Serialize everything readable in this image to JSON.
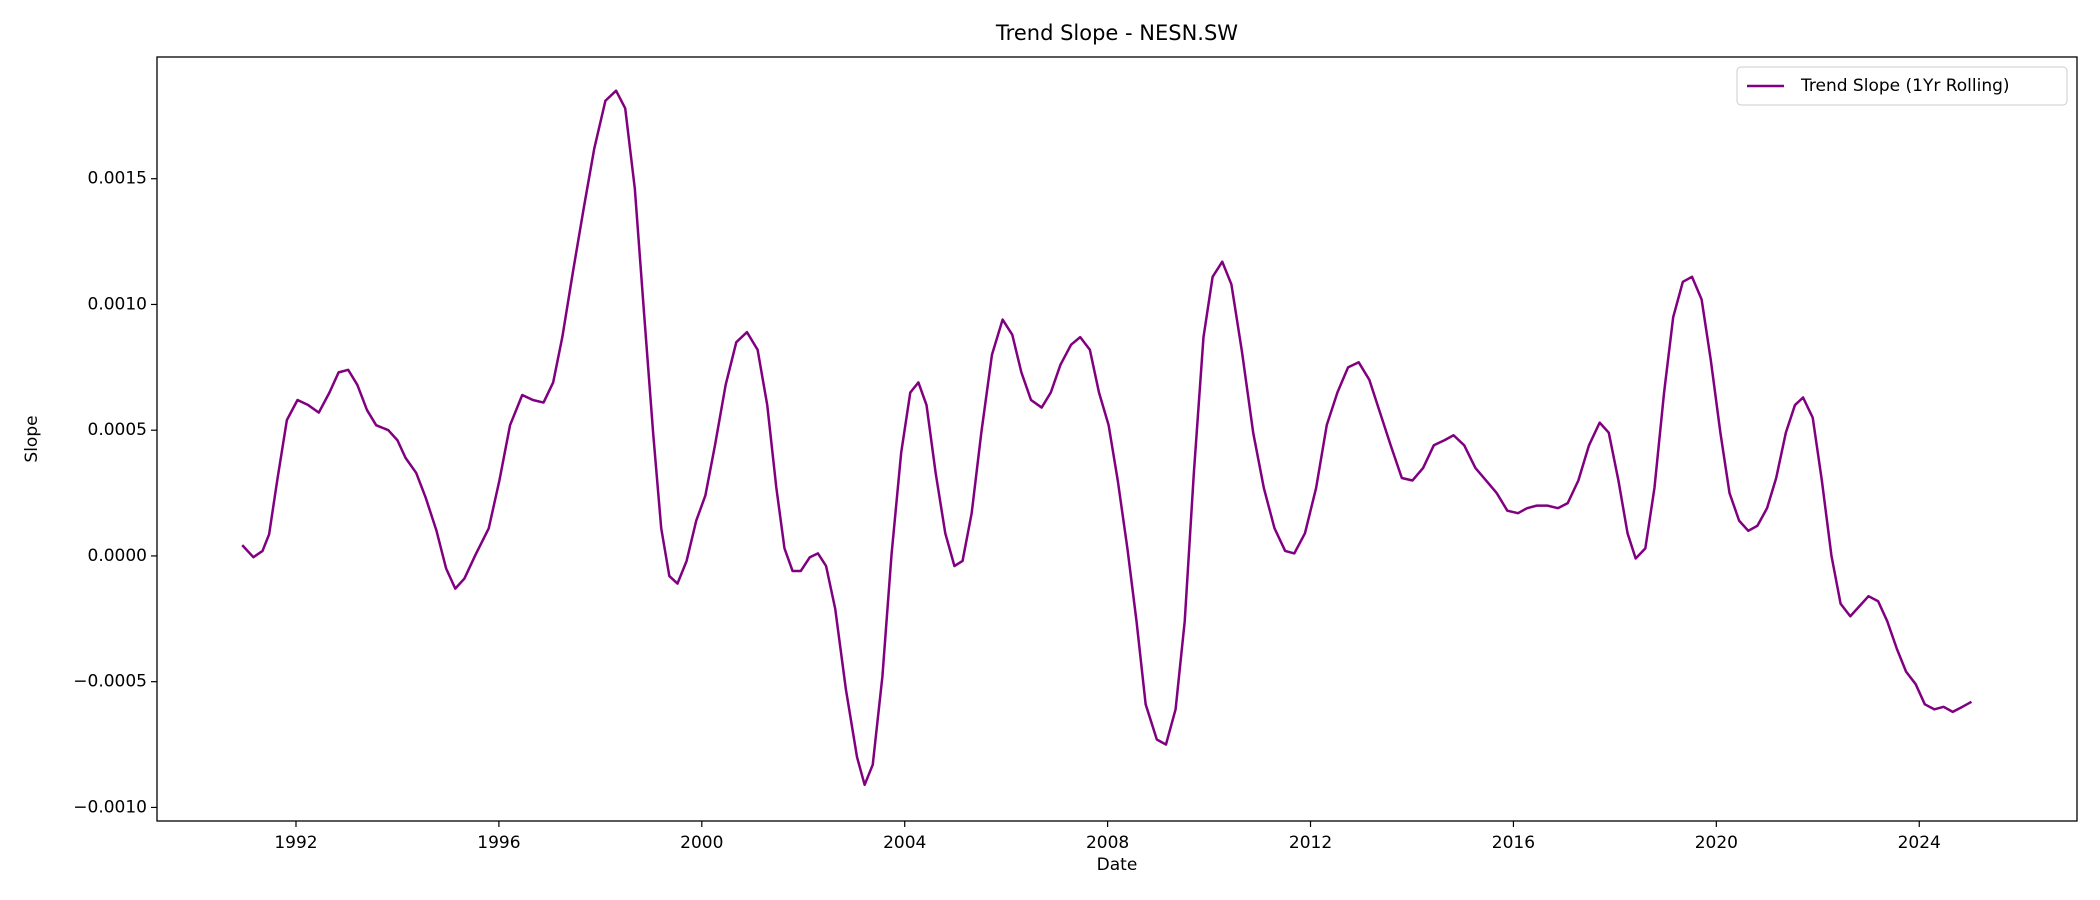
{
  "chart_data": {
    "type": "line",
    "title": "Trend Slope - NESN.SW",
    "xlabel": "Date",
    "ylabel": "Slope",
    "x": [
      1990.94,
      1991.16,
      1991.34,
      1991.47,
      1991.63,
      1991.82,
      1992.03,
      1992.24,
      1992.45,
      1992.66,
      1992.84,
      1993.03,
      1993.21,
      1993.4,
      1993.58,
      1993.82,
      1994.0,
      1994.16,
      1994.37,
      1994.56,
      1994.77,
      1994.96,
      1995.14,
      1995.32,
      1995.54,
      1995.8,
      1996.01,
      1996.22,
      1996.46,
      1996.67,
      1996.88,
      1997.07,
      1997.25,
      1997.46,
      1997.67,
      1997.88,
      1998.1,
      1998.31,
      1998.49,
      1998.68,
      1998.86,
      1999.04,
      1999.2,
      1999.36,
      1999.52,
      1999.7,
      1999.89,
      2000.07,
      2000.26,
      2000.47,
      2000.68,
      2000.89,
      2001.1,
      2001.29,
      2001.47,
      2001.63,
      2001.79,
      2001.95,
      2002.13,
      2002.29,
      2002.45,
      2002.63,
      2002.84,
      2003.06,
      2003.21,
      2003.37,
      2003.56,
      2003.74,
      2003.93,
      2004.11,
      2004.27,
      2004.43,
      2004.61,
      2004.8,
      2004.98,
      2005.14,
      2005.32,
      2005.51,
      2005.72,
      2005.93,
      2006.12,
      2006.3,
      2006.49,
      2006.7,
      2006.88,
      2007.07,
      2007.28,
      2007.46,
      2007.65,
      2007.83,
      2008.02,
      2008.2,
      2008.39,
      2008.57,
      2008.75,
      2008.97,
      2009.15,
      2009.34,
      2009.52,
      2009.7,
      2009.89,
      2010.07,
      2010.26,
      2010.44,
      2010.65,
      2010.87,
      2011.08,
      2011.29,
      2011.5,
      2011.68,
      2011.89,
      2012.11,
      2012.32,
      2012.53,
      2012.74,
      2012.95,
      2013.16,
      2013.37,
      2013.58,
      2013.8,
      2014.01,
      2014.22,
      2014.43,
      2014.64,
      2014.82,
      2015.03,
      2015.25,
      2015.46,
      2015.67,
      2015.88,
      2016.09,
      2016.27,
      2016.46,
      2016.67,
      2016.88,
      2017.07,
      2017.28,
      2017.49,
      2017.7,
      2017.88,
      2018.07,
      2018.25,
      2018.41,
      2018.6,
      2018.78,
      2018.97,
      2019.15,
      2019.34,
      2019.52,
      2019.71,
      2019.89,
      2020.08,
      2020.26,
      2020.45,
      2020.63,
      2020.81,
      2021.0,
      2021.18,
      2021.37,
      2021.55,
      2021.71,
      2021.9,
      2022.08,
      2022.27,
      2022.45,
      2022.64,
      2022.82,
      2023.0,
      2023.19,
      2023.37,
      2023.56,
      2023.74,
      2023.93,
      2024.11,
      2024.3,
      2024.48,
      2024.66,
      2024.85,
      2025.03
    ],
    "series": [
      {
        "name": "Trend Slope (1Yr Rolling)",
        "color": "#800080",
        "values": [
          4.3e-05,
          -5e-06,
          2e-05,
          8.6e-05,
          0.0003,
          0.00054,
          0.00062,
          0.0006,
          0.00057,
          0.00065,
          0.00073,
          0.00074,
          0.00068,
          0.00058,
          0.00052,
          0.0005,
          0.00046,
          0.00039,
          0.00033,
          0.00023,
          0.0001,
          -5e-05,
          -0.00013,
          -9e-05,
          5e-06,
          0.00011,
          0.0003,
          0.00052,
          0.00064,
          0.00062,
          0.00061,
          0.00069,
          0.00087,
          0.00113,
          0.00138,
          0.00162,
          0.00181,
          0.00185,
          0.00178,
          0.00146,
          0.00097,
          0.00049,
          0.00011,
          -8e-05,
          -0.00011,
          -2e-05,
          0.00014,
          0.00024,
          0.00044,
          0.00068,
          0.00085,
          0.00089,
          0.00082,
          0.0006,
          0.00027,
          3e-05,
          -6e-05,
          -6e-05,
          -5e-06,
          1e-05,
          -4e-05,
          -0.00021,
          -0.00053,
          -0.0008,
          -0.00091,
          -0.00083,
          -0.00048,
          5e-06,
          0.00041,
          0.00065,
          0.00069,
          0.0006,
          0.00033,
          9e-05,
          -4e-05,
          -2e-05,
          0.00017,
          0.00049,
          0.0008,
          0.00094,
          0.00088,
          0.00073,
          0.00062,
          0.00059,
          0.00065,
          0.00076,
          0.00084,
          0.00087,
          0.00082,
          0.00065,
          0.00052,
          0.0003,
          3e-05,
          -0.00026,
          -0.00059,
          -0.00073,
          -0.00075,
          -0.00061,
          -0.00026,
          0.00033,
          0.00087,
          0.00111,
          0.00117,
          0.00108,
          0.00081,
          0.00049,
          0.00027,
          0.00011,
          2e-05,
          1e-05,
          9e-05,
          0.00027,
          0.00052,
          0.00065,
          0.00075,
          0.00077,
          0.0007,
          0.00057,
          0.00044,
          0.00031,
          0.0003,
          0.00035,
          0.00044,
          0.00046,
          0.00048,
          0.00044,
          0.00035,
          0.0003,
          0.00025,
          0.00018,
          0.00017,
          0.00019,
          0.0002,
          0.0002,
          0.00019,
          0.00021,
          0.0003,
          0.00044,
          0.00053,
          0.00049,
          0.0003,
          9e-05,
          -1e-05,
          3e-05,
          0.00027,
          0.00065,
          0.00095,
          0.00109,
          0.00111,
          0.00102,
          0.00078,
          0.00049,
          0.00025,
          0.00014,
          0.0001,
          0.00012,
          0.00019,
          0.00031,
          0.00049,
          0.0006,
          0.00063,
          0.00055,
          0.0003,
          0.0,
          -0.00019,
          -0.00024,
          -0.0002,
          -0.00016,
          -0.00018,
          -0.00026,
          -0.00037,
          -0.00046,
          -0.00051,
          -0.00059,
          -0.00061,
          -0.0006,
          -0.00062,
          -0.0006,
          -0.00058
        ]
      }
    ],
    "xlim": [
      1989.26,
      2027.11
    ],
    "xticks": [
      1992,
      1996,
      2000,
      2004,
      2008,
      2012,
      2016,
      2020,
      2024
    ],
    "ylim": [
      -0.001054,
      0.001984
    ],
    "yticks": [
      {
        "value": -0.001,
        "label": "−0.0010"
      },
      {
        "value": -0.0005,
        "label": "−0.0005"
      },
      {
        "value": 0,
        "label": "0.0000"
      },
      {
        "value": 0.0005,
        "label": "0.0005"
      },
      {
        "value": 0.001,
        "label": "0.0010"
      },
      {
        "value": 0.0015,
        "label": "0.0015"
      }
    ],
    "grid": false,
    "legend": "upper right"
  }
}
